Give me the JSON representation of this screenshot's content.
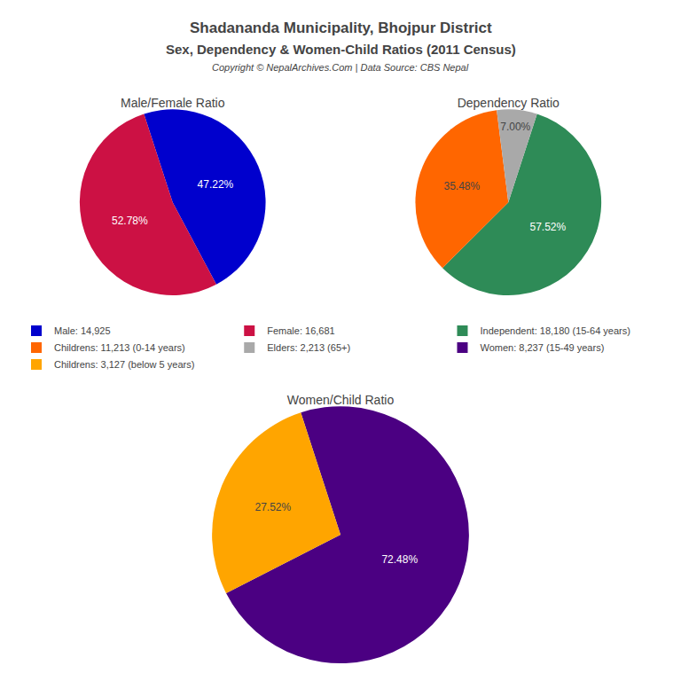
{
  "title": "Shadananda Municipality, Bhojpur District",
  "subtitle": "Sex, Dependency & Women-Child Ratios (2011 Census)",
  "annotations": [
    "Copyright © NepalArchives.Com | Data Source: CBS Nepal"
  ],
  "legend": "center",
  "chart_data": [
    {
      "type": "pie",
      "title": "Male/Female Ratio",
      "categories": [
        "Male: 14,925",
        "Female: 16,681"
      ],
      "values": [
        47.22,
        52.78
      ],
      "value_labels": [
        "47.22%",
        "52.78%"
      ],
      "colors": [
        "#0000CD",
        "#CC1144"
      ],
      "data_labels": true
    },
    {
      "type": "pie",
      "title": "Dependency Ratio",
      "categories": [
        "Independent: 18,180 (15-64 years)",
        "Childrens: 11,213 (0-14 years)",
        "Elders: 2,213 (65+)"
      ],
      "values": [
        57.52,
        35.48,
        7.0
      ],
      "value_labels": [
        "57.52%",
        "35.48%",
        "7.00%"
      ],
      "colors": [
        "#2E8B57",
        "#FF6600",
        "#A9A9A9"
      ],
      "data_labels": true
    },
    {
      "type": "pie",
      "title": "Women/Child Ratio",
      "categories": [
        "Women: 8,237 (15-49 years)",
        "Childrens: 3,127 (below 5 years)"
      ],
      "values": [
        72.48,
        27.52
      ],
      "value_labels": [
        "72.48%",
        "27.52%"
      ],
      "colors": [
        "#4B0082",
        "#FFA500"
      ],
      "data_labels": true
    }
  ]
}
